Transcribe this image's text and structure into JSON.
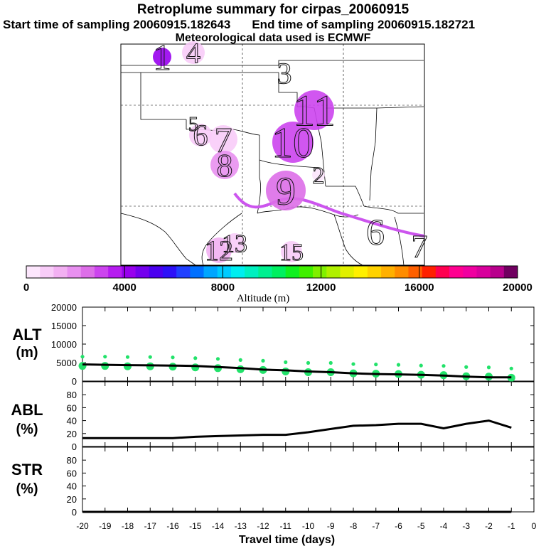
{
  "header": {
    "title": "Retroplume summary for cirpas_20060915",
    "start_label": "Start time of sampling 20060915.182643",
    "end_label": "End time of sampling 20060915.182721",
    "met_label": "Meteorological data used is ECMWF"
  },
  "map": {
    "plume_labels": [
      {
        "label": "1",
        "alt": 3900
      },
      {
        "label": "4",
        "alt": 900
      },
      {
        "label": "3",
        "alt": 0
      },
      {
        "label": "11",
        "alt": 2800
      },
      {
        "label": "5",
        "alt": 0
      },
      {
        "label": "6",
        "alt": 700
      },
      {
        "label": "7",
        "alt": 800
      },
      {
        "label": "8",
        "alt": 2000
      },
      {
        "label": "10",
        "alt": 3000
      },
      {
        "label": "2",
        "alt": 300
      },
      {
        "label": "9",
        "alt": 2300
      },
      {
        "label": "12",
        "alt": 1500
      },
      {
        "label": "13",
        "alt": 900
      },
      {
        "label": "15",
        "alt": 700
      },
      {
        "label": "6",
        "alt": 0
      },
      {
        "label": "7",
        "alt": 0
      }
    ]
  },
  "colorbar": {
    "title": "Altitude (m)",
    "ticks": [
      "0",
      "4000",
      "8000",
      "12000",
      "16000",
      "20000"
    ],
    "min": 0,
    "max": 20000,
    "colors": [
      "#fce6fc",
      "#f8ccf8",
      "#f2b0f2",
      "#e890f0",
      "#dd6ee8",
      "#cc44ee",
      "#b61cf0",
      "#9800ee",
      "#7400ee",
      "#4b00f0",
      "#2d10f8",
      "#2040ff",
      "#0070ff",
      "#00a6ff",
      "#00ccff",
      "#00eef0",
      "#00f0c0",
      "#00f090",
      "#00f060",
      "#10f020",
      "#40f000",
      "#80f000",
      "#b0f000",
      "#e0f000",
      "#fff000",
      "#ffd200",
      "#ffb000",
      "#ff8c00",
      "#ff6000",
      "#ff2000",
      "#ff0050",
      "#ff0090",
      "#f000a0",
      "#d8009c",
      "#b8008c",
      "#700060"
    ]
  },
  "chart_data": [
    {
      "type": "line+scatter",
      "panel": "ALT",
      "ylabel": "ALT (m)",
      "ylim": [
        0,
        20000
      ],
      "yticks": [
        0,
        5000,
        10000,
        15000,
        20000
      ],
      "xlim": [
        -20,
        0
      ],
      "x": [
        -20,
        -19,
        -18,
        -17,
        -16,
        -15,
        -14,
        -13,
        -12,
        -11,
        -10,
        -9,
        -8,
        -7,
        -6,
        -5,
        -4,
        -3,
        -2,
        -1
      ],
      "line_values": [
        4500,
        4400,
        4300,
        4250,
        4200,
        4100,
        3800,
        3500,
        3100,
        2900,
        2600,
        2400,
        2100,
        1900,
        1800,
        1700,
        1500,
        1200,
        1000,
        1000
      ],
      "point_values": [
        4100,
        4100,
        4000,
        4000,
        3900,
        3700,
        3500,
        3200,
        3000,
        2600,
        2400,
        2400,
        2100,
        2000,
        1900,
        1700,
        1600,
        1300,
        1200,
        900
      ]
    },
    {
      "type": "line",
      "panel": "ABL",
      "ylabel": "ABL (%)",
      "ylim": [
        0,
        100
      ],
      "yticks": [
        0,
        20,
        40,
        60,
        80
      ],
      "xlim": [
        -20,
        0
      ],
      "x": [
        -20,
        -19,
        -18,
        -17,
        -16,
        -15,
        -14,
        -13,
        -12,
        -11,
        -10,
        -9,
        -8,
        -7,
        -6,
        -5,
        -4,
        -3,
        -2,
        -1
      ],
      "values": [
        13,
        13,
        13,
        13,
        13,
        15,
        16,
        17,
        18,
        18,
        22,
        27,
        32,
        33,
        35,
        35,
        28,
        35,
        40,
        29
      ]
    },
    {
      "type": "line",
      "panel": "STR",
      "ylabel": "STR (%)",
      "ylim": [
        0,
        100
      ],
      "yticks": [
        0,
        20,
        40,
        60,
        80
      ],
      "xlim": [
        -20,
        0
      ],
      "xlabel": "Travel time (days)",
      "xticks": [
        -20,
        -19,
        -18,
        -17,
        -16,
        -15,
        -14,
        -13,
        -12,
        -11,
        -10,
        -9,
        -8,
        -7,
        -6,
        -5,
        -4,
        -3,
        -2,
        -1,
        0
      ],
      "x": [
        -20,
        -19,
        -18,
        -17,
        -16,
        -15,
        -14,
        -13,
        -12,
        -11,
        -10,
        -9,
        -8,
        -7,
        -6,
        -5,
        -4,
        -3,
        -2,
        -1
      ],
      "values": [
        0,
        0,
        0,
        0,
        0,
        0,
        0,
        0,
        0,
        0,
        0,
        0,
        0,
        0,
        0,
        0,
        0,
        0,
        0,
        0
      ]
    }
  ]
}
